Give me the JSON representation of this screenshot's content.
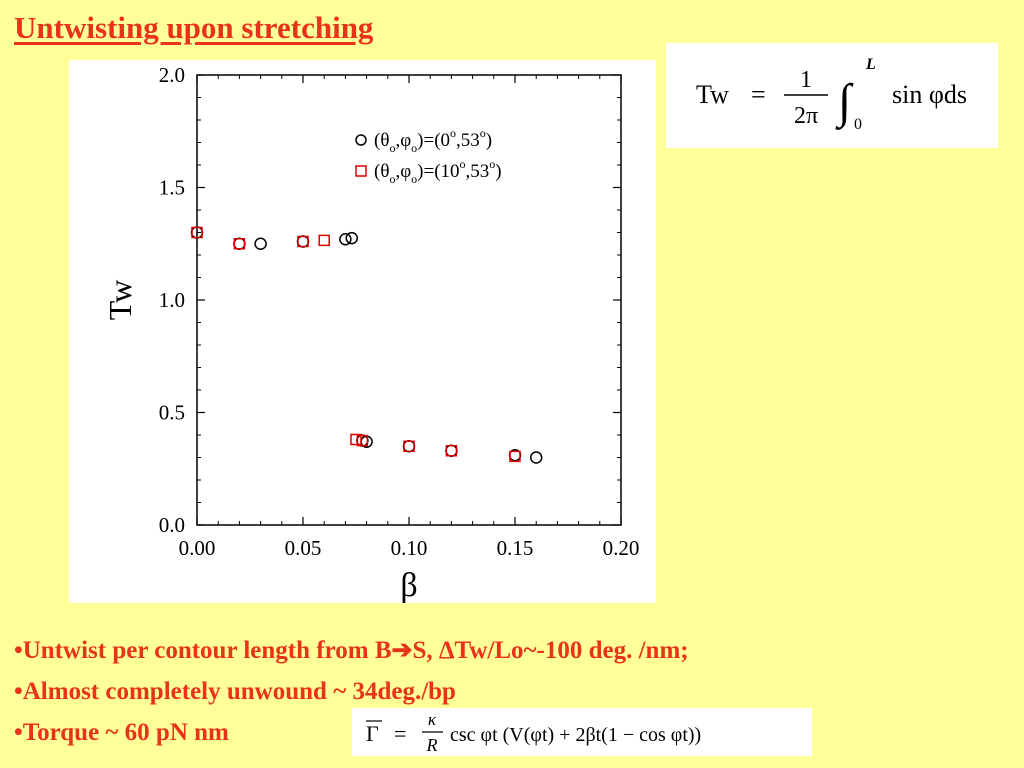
{
  "title": "Untwisting upon stretching",
  "chart_data": {
    "type": "scatter",
    "xlabel": "β",
    "ylabel": "Tw",
    "xlim": [
      0.0,
      0.2
    ],
    "ylim": [
      0.0,
      2.0
    ],
    "x_ticks": [
      "0.00",
      "0.05",
      "0.10",
      "0.15",
      "0.20"
    ],
    "y_ticks": [
      "0.0",
      "0.5",
      "1.0",
      "1.5",
      "2.0"
    ],
    "x_tick_values": [
      0.0,
      0.05,
      0.1,
      0.15,
      0.2
    ],
    "y_tick_values": [
      0.0,
      0.5,
      1.0,
      1.5,
      2.0
    ],
    "grid": false,
    "legend_position": "top-right",
    "series": [
      {
        "name": "(θo,φo)=(0o,53o)",
        "marker": "circle",
        "color": "#000000",
        "points": [
          [
            0.0,
            1.3
          ],
          [
            0.02,
            1.25
          ],
          [
            0.03,
            1.25
          ],
          [
            0.05,
            1.26
          ],
          [
            0.07,
            1.27
          ],
          [
            0.073,
            1.275
          ],
          [
            0.078,
            0.375
          ],
          [
            0.08,
            0.37
          ],
          [
            0.1,
            0.35
          ],
          [
            0.12,
            0.33
          ],
          [
            0.15,
            0.31
          ],
          [
            0.16,
            0.3
          ]
        ]
      },
      {
        "name": "(θo,φo)=(10o,53o)",
        "marker": "square",
        "color": "#dd0000",
        "points": [
          [
            0.0,
            1.3
          ],
          [
            0.02,
            1.25
          ],
          [
            0.05,
            1.26
          ],
          [
            0.06,
            1.265
          ],
          [
            0.075,
            0.38
          ],
          [
            0.078,
            0.375
          ],
          [
            0.1,
            0.35
          ],
          [
            0.12,
            0.33
          ],
          [
            0.15,
            0.305
          ]
        ]
      }
    ]
  },
  "formula_tw": {
    "lhs": "Tw",
    "numerator": "1",
    "denominator": "2π",
    "upper": "L",
    "lower": "0",
    "integrand": "sin φds"
  },
  "bullets": [
    "•Untwist per contour length from B➔S,  ΔTw/Lo~-100 deg. /nm;",
    "•Almost completely unwound ~ 34deg./bp",
    "•Torque ~ 60 pN nm"
  ],
  "formula_torque": {
    "lhs": "Γ",
    "numerator": "κ",
    "denominator": "R",
    "body": "csc φt (V(φt) + 2βt(1 − cos φt))"
  }
}
